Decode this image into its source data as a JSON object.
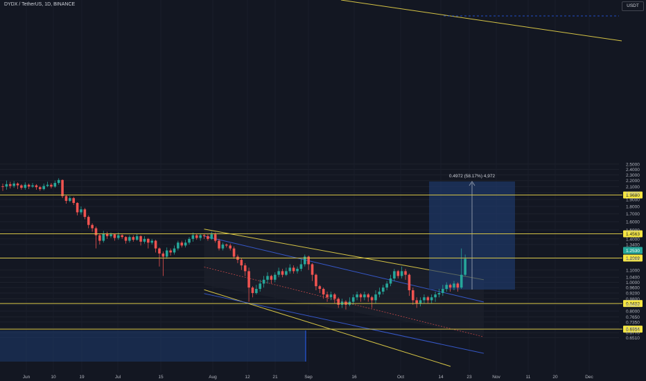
{
  "header": {
    "symbol": "DYDX / TetherUS, 1D, BINANCE",
    "currency": "USDT"
  },
  "chart_data": {
    "type": "candlestick",
    "symbol": "DYDX / TetherUS",
    "interval": "1D",
    "exchange": "BINANCE",
    "y_scale": "log",
    "y_tick_labels": [
      "2.5000",
      "2.4000",
      "2.3000",
      "2.2000",
      "2.1000",
      "2.0000",
      "1.9000",
      "1.8000",
      "1.7000",
      "1.6000",
      "1.5000",
      "1.4000",
      "1.3400",
      "1.2000",
      "1.1000",
      "1.0400",
      "1.0000",
      "0.9600",
      "0.9200",
      "0.8800",
      "0.8400",
      "0.8000",
      "0.7650",
      "0.7350",
      "0.7000",
      "0.6770",
      "0.6510"
    ],
    "x_tick_labels": [
      "Jun",
      "10",
      "19",
      "Jul",
      "15",
      "Aug",
      "12",
      "21",
      "Sep",
      "16",
      "Oct",
      "14",
      "23",
      "Nov",
      "11",
      "20",
      "Dec"
    ],
    "price_lines": [
      {
        "label": "1.9680",
        "value": 1.968
      },
      {
        "label": "1.4563",
        "value": 1.4563
      },
      {
        "label": "1.2069",
        "value": 1.2069
      },
      {
        "label": "0.8483",
        "value": 0.8483
      },
      {
        "label": "0.6954",
        "value": 0.6954
      }
    ],
    "current_price_tag": "1.2530",
    "measure_label": "0.4972 (58.17%) 4,972",
    "colors": {
      "background": "#131722",
      "up": "#26a69a",
      "down": "#ef5350",
      "horizontal_line": "#d7c545",
      "channel_outer": "#d7c545",
      "channel_inner": "#3658c9",
      "measure_box": "#1e3a6e",
      "label_bg": "#f5e642",
      "current_tag": "#26a69a"
    },
    "candles": [
      [
        0.0,
        2.105,
        2.1,
        2.15,
        2.03
      ],
      [
        0.1,
        2.1,
        2.14,
        2.2,
        2.05
      ],
      [
        0.2,
        2.14,
        2.11,
        2.18,
        2.07
      ],
      [
        0.3,
        2.11,
        2.15,
        2.19,
        2.08
      ],
      [
        0.4,
        2.15,
        2.12,
        2.17,
        2.06
      ],
      [
        0.5,
        2.12,
        2.08,
        2.14,
        2.05
      ],
      [
        0.6,
        2.08,
        2.13,
        2.17,
        2.05
      ],
      [
        0.7,
        2.13,
        2.1,
        2.15,
        2.06
      ],
      [
        0.8,
        2.1,
        2.12,
        2.16,
        2.08
      ],
      [
        0.9,
        2.12,
        2.09,
        2.14,
        2.05
      ],
      [
        1.0,
        2.09,
        2.06,
        2.11,
        2.03
      ],
      [
        1.1,
        2.06,
        2.11,
        2.15,
        2.04
      ],
      [
        1.2,
        2.11,
        2.13,
        2.18,
        2.09
      ],
      [
        1.3,
        2.13,
        2.1,
        2.16,
        2.07
      ],
      [
        1.4,
        2.1,
        2.16,
        2.2,
        2.08
      ],
      [
        1.5,
        2.16,
        2.21,
        2.24,
        2.13
      ],
      [
        1.6,
        2.21,
        1.95,
        2.22,
        1.92
      ],
      [
        1.7,
        1.95,
        1.88,
        1.97,
        1.84
      ],
      [
        1.8,
        1.88,
        1.92,
        1.95,
        1.86
      ],
      [
        1.9,
        1.92,
        1.85,
        1.94,
        1.82
      ],
      [
        2.0,
        1.85,
        1.72,
        1.86,
        1.68
      ],
      [
        2.1,
        1.72,
        1.76,
        1.8,
        1.69
      ],
      [
        2.2,
        1.76,
        1.66,
        1.78,
        1.63
      ],
      [
        2.3,
        1.66,
        1.56,
        1.68,
        1.52
      ],
      [
        2.4,
        1.56,
        1.52,
        1.58,
        1.48
      ],
      [
        2.5,
        1.52,
        1.44,
        1.54,
        1.3
      ],
      [
        2.6,
        1.44,
        1.38,
        1.46,
        1.34
      ],
      [
        2.7,
        1.38,
        1.46,
        1.49,
        1.36
      ],
      [
        2.8,
        1.46,
        1.43,
        1.48,
        1.4
      ],
      [
        2.9,
        1.43,
        1.45,
        1.47,
        1.41
      ],
      [
        3.0,
        1.45,
        1.41,
        1.46,
        1.38
      ],
      [
        3.1,
        1.41,
        1.44,
        1.47,
        1.39
      ],
      [
        3.2,
        1.44,
        1.42,
        1.45,
        1.4
      ],
      [
        3.3,
        1.42,
        1.38,
        1.43,
        1.35
      ],
      [
        3.4,
        1.38,
        1.42,
        1.44,
        1.36
      ],
      [
        3.5,
        1.42,
        1.39,
        1.44,
        1.37
      ],
      [
        3.6,
        1.39,
        1.43,
        1.46,
        1.38
      ],
      [
        3.7,
        1.43,
        1.37,
        1.44,
        1.33
      ],
      [
        3.8,
        1.37,
        1.4,
        1.43,
        1.35
      ],
      [
        3.9,
        1.4,
        1.36,
        1.41,
        1.3
      ],
      [
        4.0,
        1.36,
        1.38,
        1.4,
        1.34
      ],
      [
        4.1,
        1.38,
        1.3,
        1.39,
        1.26
      ],
      [
        4.2,
        1.3,
        1.25,
        1.31,
        1.13
      ],
      [
        4.3,
        1.25,
        1.22,
        1.27,
        1.05
      ],
      [
        4.4,
        1.22,
        1.28,
        1.31,
        1.2
      ],
      [
        4.5,
        1.28,
        1.26,
        1.3,
        1.23
      ],
      [
        4.6,
        1.26,
        1.3,
        1.33,
        1.24
      ],
      [
        4.7,
        1.3,
        1.36,
        1.38,
        1.28
      ],
      [
        4.8,
        1.36,
        1.33,
        1.38,
        1.31
      ],
      [
        4.9,
        1.33,
        1.36,
        1.39,
        1.31
      ],
      [
        5.0,
        1.36,
        1.4,
        1.42,
        1.34
      ],
      [
        5.1,
        1.4,
        1.44,
        1.47,
        1.37
      ],
      [
        5.2,
        1.44,
        1.41,
        1.46,
        1.39
      ],
      [
        5.3,
        1.41,
        1.44,
        1.46,
        1.38
      ],
      [
        5.4,
        1.44,
        1.43,
        1.46,
        1.4
      ],
      [
        5.5,
        1.43,
        1.4,
        1.45,
        1.38
      ],
      [
        5.6,
        1.4,
        1.45,
        1.48,
        1.39
      ],
      [
        5.7,
        1.45,
        1.38,
        1.47,
        1.36
      ],
      [
        5.8,
        1.38,
        1.3,
        1.4,
        1.28
      ],
      [
        5.9,
        1.3,
        1.34,
        1.36,
        1.28
      ],
      [
        6.0,
        1.34,
        1.33,
        1.35,
        1.31
      ],
      [
        6.1,
        1.33,
        1.3,
        1.35,
        1.28
      ],
      [
        6.2,
        1.3,
        1.22,
        1.32,
        1.2
      ],
      [
        6.3,
        1.22,
        1.19,
        1.24,
        1.16
      ],
      [
        6.4,
        1.19,
        1.14,
        1.21,
        1.1
      ],
      [
        6.5,
        1.14,
        1.09,
        1.16,
        1.05
      ],
      [
        6.6,
        1.09,
        0.96,
        1.12,
        0.86
      ],
      [
        6.7,
        0.96,
        0.92,
        0.97,
        0.89
      ],
      [
        6.8,
        0.92,
        0.95,
        0.98,
        0.91
      ],
      [
        6.9,
        0.95,
        0.99,
        1.02,
        0.93
      ],
      [
        7.0,
        0.99,
        1.02,
        1.05,
        0.96
      ],
      [
        7.1,
        1.02,
        1.05,
        1.08,
        0.99
      ],
      [
        7.2,
        1.05,
        1.02,
        1.06,
        0.99
      ],
      [
        7.3,
        1.02,
        1.06,
        1.08,
        1.0
      ],
      [
        7.4,
        1.06,
        1.09,
        1.12,
        1.04
      ],
      [
        7.5,
        1.09,
        1.06,
        1.11,
        1.04
      ],
      [
        7.6,
        1.06,
        1.09,
        1.12,
        1.05
      ],
      [
        7.7,
        1.09,
        1.12,
        1.15,
        1.07
      ],
      [
        7.8,
        1.12,
        1.09,
        1.14,
        1.07
      ],
      [
        7.9,
        1.09,
        1.11,
        1.13,
        1.07
      ],
      [
        8.0,
        1.11,
        1.15,
        1.2,
        1.09
      ],
      [
        8.1,
        1.15,
        1.22,
        1.24,
        1.13
      ],
      [
        8.2,
        1.22,
        1.15,
        1.23,
        1.1
      ],
      [
        8.3,
        1.15,
        1.06,
        1.16,
        1.01
      ],
      [
        8.4,
        1.06,
        0.97,
        1.07,
        0.94
      ],
      [
        8.5,
        0.97,
        0.95,
        0.98,
        0.92
      ],
      [
        8.6,
        0.95,
        0.91,
        0.96,
        0.88
      ],
      [
        8.7,
        0.91,
        0.89,
        0.93,
        0.86
      ],
      [
        8.8,
        0.89,
        0.91,
        0.93,
        0.87
      ],
      [
        8.9,
        0.91,
        0.88,
        0.92,
        0.85
      ],
      [
        9.0,
        0.88,
        0.84,
        0.89,
        0.82
      ],
      [
        9.1,
        0.84,
        0.86,
        0.88,
        0.82
      ],
      [
        9.2,
        0.86,
        0.84,
        0.87,
        0.81
      ],
      [
        9.3,
        0.84,
        0.86,
        0.89,
        0.83
      ],
      [
        9.4,
        0.86,
        0.89,
        0.91,
        0.84
      ],
      [
        9.5,
        0.89,
        0.91,
        0.93,
        0.87
      ],
      [
        9.6,
        0.91,
        0.89,
        0.92,
        0.86
      ],
      [
        9.7,
        0.89,
        0.91,
        0.93,
        0.87
      ],
      [
        9.8,
        0.91,
        0.89,
        0.92,
        0.86
      ],
      [
        9.9,
        0.89,
        0.87,
        0.9,
        0.82
      ],
      [
        10.0,
        0.87,
        0.91,
        0.94,
        0.85
      ],
      [
        10.1,
        0.91,
        0.93,
        0.96,
        0.89
      ],
      [
        10.2,
        0.93,
        0.96,
        0.98,
        0.91
      ],
      [
        10.3,
        0.96,
        0.99,
        1.01,
        0.94
      ],
      [
        10.4,
        0.99,
        1.03,
        1.06,
        0.97
      ],
      [
        10.5,
        1.03,
        1.09,
        1.11,
        1.01
      ],
      [
        10.6,
        1.09,
        1.05,
        1.1,
        1.03
      ],
      [
        10.7,
        1.05,
        1.09,
        1.13,
        1.03
      ],
      [
        10.8,
        1.09,
        1.06,
        1.11,
        1.02
      ],
      [
        10.9,
        1.06,
        0.94,
        1.07,
        0.9
      ],
      [
        11.0,
        0.94,
        0.87,
        0.96,
        0.84
      ],
      [
        11.1,
        0.87,
        0.85,
        0.89,
        0.82
      ],
      [
        11.2,
        0.85,
        0.87,
        0.89,
        0.83
      ],
      [
        11.3,
        0.87,
        0.89,
        0.91,
        0.85
      ],
      [
        11.4,
        0.89,
        0.87,
        0.9,
        0.85
      ],
      [
        11.5,
        0.87,
        0.89,
        0.91,
        0.85
      ],
      [
        11.6,
        0.89,
        0.91,
        0.93,
        0.86
      ],
      [
        11.7,
        0.91,
        0.92,
        0.95,
        0.89
      ],
      [
        11.8,
        0.92,
        0.95,
        0.98,
        0.9
      ],
      [
        11.9,
        0.95,
        0.98,
        1.0,
        0.93
      ],
      [
        12.0,
        0.98,
        0.96,
        0.99,
        0.93
      ],
      [
        12.1,
        0.96,
        0.99,
        1.01,
        0.94
      ],
      [
        12.2,
        0.99,
        0.96,
        1.0,
        0.93
      ],
      [
        12.3,
        0.96,
        1.06,
        1.3,
        0.95
      ],
      [
        12.4,
        1.06,
        1.2,
        1.24,
        1.05
      ]
    ],
    "channel": {
      "start_index": 5.4,
      "end_index": 12.9,
      "upper_start": 1.51,
      "upper_end": 1.02,
      "lower_start": 0.98,
      "lower_end": 0.66,
      "inner_upper_start": 1.43,
      "inner_upper_end": 0.93,
      "inner_lower_start": 1.02,
      "inner_lower_end": 0.67,
      "mid_start": 1.22,
      "mid_end": 0.79
    }
  }
}
